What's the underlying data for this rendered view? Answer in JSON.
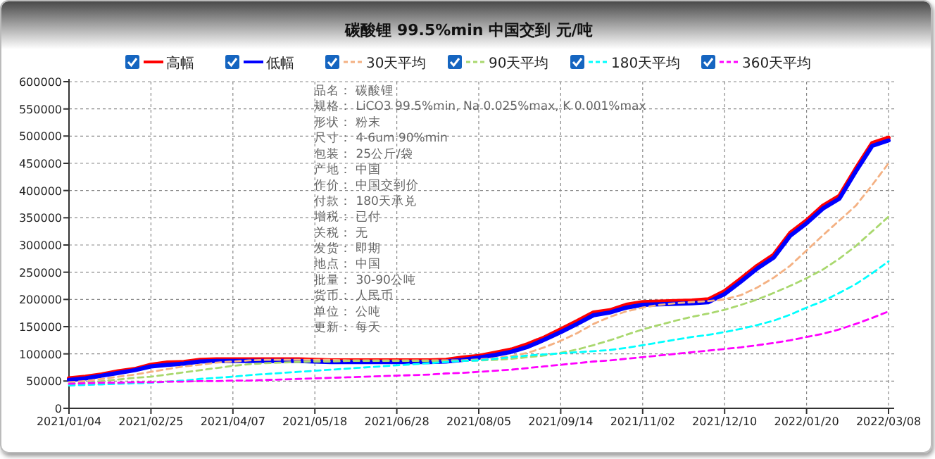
{
  "chart_data": {
    "type": "line",
    "title": "碳酸锂 99.5%min 中国交到 元/吨",
    "categories": [
      "2021/01/04",
      null,
      null,
      null,
      null,
      "2021/02/25",
      null,
      null,
      null,
      null,
      "2021/04/07",
      null,
      null,
      null,
      null,
      "2021/05/18",
      null,
      null,
      null,
      null,
      "2021/06/28",
      null,
      null,
      null,
      null,
      "2021/08/05",
      null,
      null,
      null,
      null,
      "2021/09/14",
      null,
      null,
      null,
      null,
      "2021/11/02",
      null,
      null,
      null,
      null,
      "2021/12/10",
      null,
      null,
      null,
      null,
      "2022/01/20",
      null,
      null,
      null,
      null,
      "2022/03/08"
    ],
    "series": [
      {
        "name": "高幅",
        "color": "#ff0000",
        "line_style": "solid",
        "values": [
          55000,
          58000,
          62000,
          68000,
          72000,
          80000,
          84000,
          85000,
          89000,
          90000,
          90000,
          90000,
          90000,
          90000,
          90000,
          89000,
          88000,
          88000,
          88000,
          88000,
          88000,
          88000,
          88000,
          89000,
          93000,
          96000,
          102000,
          108000,
          118000,
          130000,
          145000,
          160000,
          176000,
          180000,
          190000,
          195000,
          196000,
          197000,
          198000,
          200000,
          215000,
          238000,
          262000,
          282000,
          322000,
          345000,
          372000,
          390000,
          440000,
          487000,
          497000
        ]
      },
      {
        "name": "低幅",
        "color": "#0000ff",
        "line_style": "solid",
        "values": [
          52000,
          55000,
          60000,
          65000,
          70000,
          77000,
          80000,
          82000,
          86000,
          87000,
          87000,
          87000,
          87000,
          87000,
          87000,
          86000,
          85000,
          85000,
          85000,
          85000,
          85000,
          85000,
          85000,
          86000,
          89000,
          93000,
          98000,
          104000,
          113000,
          126000,
          140000,
          155000,
          171000,
          176000,
          185000,
          190000,
          191000,
          192000,
          193000,
          195000,
          210000,
          233000,
          257000,
          277000,
          317000,
          340000,
          367000,
          385000,
          435000,
          482000,
          492000
        ]
      },
      {
        "name": "30天平均",
        "color": "#f4b183",
        "line_style": "dashed",
        "values": [
          48000,
          50000,
          54000,
          58000,
          62000,
          67000,
          72000,
          77000,
          80000,
          84000,
          86000,
          88000,
          89000,
          89000,
          89000,
          89000,
          89000,
          88000,
          88000,
          88000,
          88000,
          88000,
          88000,
          88000,
          88000,
          90000,
          92000,
          96000,
          102000,
          112000,
          124000,
          138000,
          155000,
          168000,
          178000,
          185000,
          190000,
          193000,
          195000,
          197000,
          200000,
          208000,
          222000,
          240000,
          262000,
          290000,
          318000,
          345000,
          372000,
          410000,
          450000
        ]
      },
      {
        "name": "90天平均",
        "color": "#a9d86e",
        "line_style": "dashed",
        "values": [
          45000,
          47000,
          50000,
          53000,
          56000,
          58000,
          62000,
          66000,
          70000,
          74000,
          78000,
          81000,
          83000,
          84000,
          85000,
          86000,
          86000,
          87000,
          87000,
          87000,
          87000,
          87000,
          87000,
          87000,
          87000,
          88000,
          89000,
          91000,
          94000,
          97000,
          102000,
          108000,
          116000,
          125000,
          135000,
          145000,
          153000,
          161000,
          168000,
          174000,
          181000,
          190000,
          200000,
          212000,
          225000,
          239000,
          255000,
          275000,
          298000,
          325000,
          352000
        ]
      },
      {
        "name": "180天平均",
        "color": "#00ffff",
        "line_style": "dashed",
        "values": [
          42000,
          43000,
          44000,
          45000,
          46000,
          47000,
          49000,
          51000,
          54000,
          56000,
          58000,
          61000,
          63000,
          65000,
          67000,
          69000,
          71000,
          73000,
          75000,
          77000,
          79000,
          81000,
          83000,
          85000,
          87000,
          88000,
          91000,
          94000,
          97000,
          99000,
          101000,
          103000,
          105000,
          107000,
          111000,
          116000,
          121000,
          126000,
          131000,
          135000,
          140000,
          146000,
          153000,
          161000,
          172000,
          185000,
          197000,
          212000,
          228000,
          248000,
          270000
        ]
      },
      {
        "name": "360天平均",
        "color": "#ff00ff",
        "line_style": "dashed",
        "values": [
          45000,
          46000,
          47000,
          47000,
          48000,
          48000,
          49000,
          49000,
          50000,
          50000,
          51000,
          51000,
          52000,
          53000,
          54000,
          55000,
          56000,
          57000,
          58000,
          59000,
          60000,
          61000,
          62000,
          64000,
          65000,
          67000,
          69000,
          71000,
          74000,
          77000,
          80000,
          83000,
          86000,
          88000,
          91000,
          94000,
          97000,
          100000,
          103000,
          106000,
          109000,
          112000,
          116000,
          120000,
          125000,
          131000,
          137000,
          145000,
          155000,
          166000,
          178000
        ]
      }
    ],
    "ylim": [
      0,
      600000
    ],
    "yticks": [
      0,
      50000,
      100000,
      150000,
      200000,
      250000,
      300000,
      350000,
      400000,
      450000,
      500000,
      550000,
      600000
    ],
    "grid": true,
    "legend": "top",
    "annotations": [
      "品名：  碳酸锂",
      "规格：  LiCO3 99.5%min, Na 0.025%max, K 0.001%max",
      "形状：  粉末",
      "尺寸：  4-6um 90%min",
      "包装：  25公斤/袋",
      "产地：  中国",
      "作价：  中国交到价",
      "付款：  180天承兑",
      "增税：  已付",
      "关税：  无",
      "发货：  即期",
      "地点：  中国",
      "批量：  30-90公吨",
      "货币：  人民币",
      "单位：  公吨",
      "更新：  每天"
    ]
  }
}
